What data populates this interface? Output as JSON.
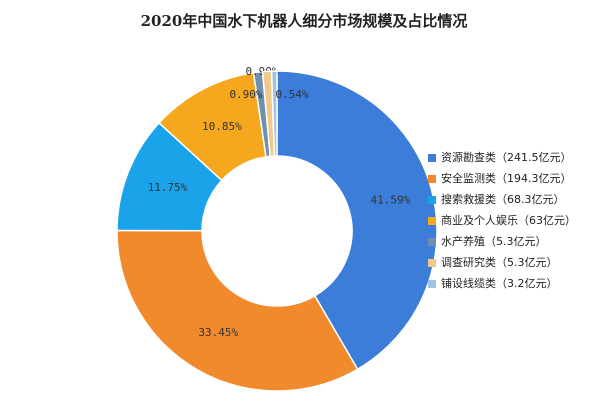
{
  "chart_data": {
    "type": "donut",
    "title": "2020年中国水下机器人细分市场规模及占比情况",
    "categories": [
      "资源勘查类（241.5亿元）",
      "安全监测类（194.3亿元）",
      "搜索救援类（68.3亿元）",
      "商业及个人娱乐（63亿元）",
      "水产养殖（5.3亿元）",
      "调查研究类（5.3亿元）",
      "铺设线缆类（3.2亿元）"
    ],
    "values": [
      41.59,
      33.45,
      11.75,
      10.85,
      0.9,
      0.9,
      0.54
    ],
    "value_labels": [
      "41.59%",
      "33.45%",
      "11.75%",
      "10.85%",
      "0.90%",
      "0.90%",
      "0.54%"
    ],
    "colors": [
      "#3b7dd8",
      "#f08a2c",
      "#1aa3e8",
      "#f5a81d",
      "#6f8fb0",
      "#f0c88a",
      "#9ec4e6"
    ],
    "legend": "right"
  }
}
